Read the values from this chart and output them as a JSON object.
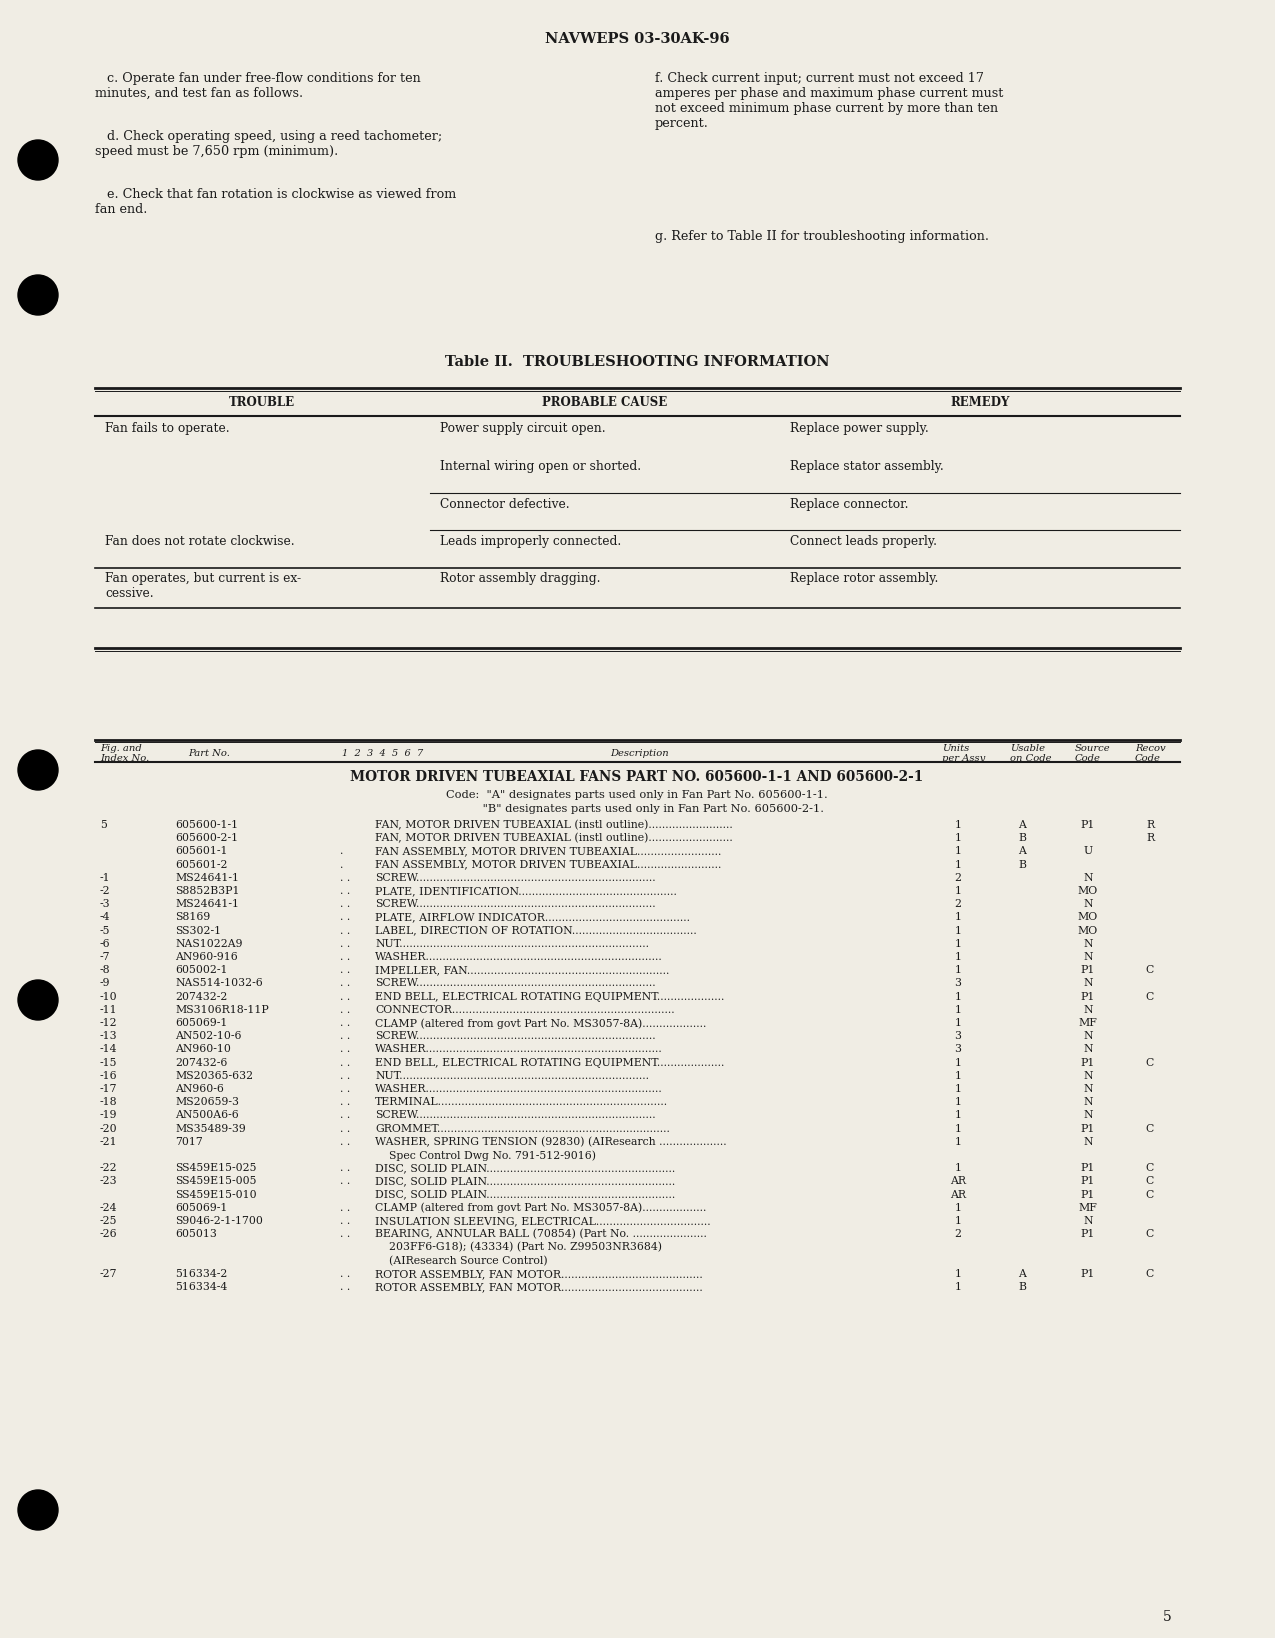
{
  "background_color": "#f0ede4",
  "page_number": "5",
  "header": "NAVWEPS 03-30AK-96",
  "body_left_para1": "   c. Operate fan under free-flow conditions for ten\nminutes, and test fan as follows.",
  "body_left_para2": "   d. Check operating speed, using a reed tachometer;\nspeed must be 7,650 rpm (minimum).",
  "body_left_para3": "   e. Check that fan rotation is clockwise as viewed from\nfan end.",
  "body_right_para1": "f. Check current input; current must not exceed 17\namperes per phase and maximum phase current must\nnot exceed minimum phase current by more than ten\npercent.",
  "body_right_para2": "g. Refer to Table II for troubleshooting information.",
  "table_title": "Table II.  TROUBLESHOOTING INFORMATION",
  "tbl_h1": "TROUBLE",
  "tbl_h2": "PROBABLE CAUSE",
  "tbl_h3": "REMEDY",
  "tbl_rows": [
    [
      "Fan fails to operate.",
      "Power supply circuit open.",
      "Replace power supply."
    ],
    [
      "",
      "Internal wiring open or shorted.",
      "Replace stator assembly."
    ],
    [
      "",
      "Connector defective.",
      "Replace connector."
    ],
    [
      "Fan does not rotate clockwise.",
      "Leads improperly connected.",
      "Connect leads properly."
    ],
    [
      "Fan operates, but current is ex-\ncessive.",
      "Rotor assembly dragging.",
      "Replace rotor assembly."
    ]
  ],
  "parts_title": "MOTOR DRIVEN TUBEAXIAL FANS PART NO. 605600-1-1 AND 605600-2-1",
  "parts_code1": "Code:  \"A\" designates parts used only in Fan Part No. 605600-1-1.",
  "parts_code2": "         \"B\" designates parts used only in Fan Part No. 605600-2-1.",
  "parts_rows": [
    [
      "5",
      "605600-1-1",
      "",
      "FAN, MOTOR DRIVEN TUBEAXIAL (instl outline).........................",
      "1",
      "A",
      "P1",
      "R"
    ],
    [
      "",
      "605600-2-1",
      "",
      "FAN, MOTOR DRIVEN TUBEAXIAL (instl outline).........................",
      "1",
      "B",
      "",
      "R"
    ],
    [
      "",
      "605601-1",
      ".",
      "FAN ASSEMBLY, MOTOR DRIVEN TUBEAXIAL.........................",
      "1",
      "A",
      "U",
      ""
    ],
    [
      "",
      "605601-2",
      ".",
      "FAN ASSEMBLY, MOTOR DRIVEN TUBEAXIAL.........................",
      "1",
      "B",
      "",
      ""
    ],
    [
      "-1",
      "MS24641-1",
      ". .",
      "SCREW.......................................................................",
      "2",
      "",
      "N",
      ""
    ],
    [
      "-2",
      "S8852B3P1",
      ". .",
      "PLATE, IDENTIFICATION...............................................",
      "1",
      "",
      "MO",
      ""
    ],
    [
      "-3",
      "MS24641-1",
      ". .",
      "SCREW.......................................................................",
      "2",
      "",
      "N",
      ""
    ],
    [
      "-4",
      "S8169",
      ". .",
      "PLATE, AIRFLOW INDICATOR...........................................",
      "1",
      "",
      "MO",
      ""
    ],
    [
      "-5",
      "SS302-1",
      ". .",
      "LABEL, DIRECTION OF ROTATION.....................................",
      "1",
      "",
      "MO",
      ""
    ],
    [
      "-6",
      "NAS1022A9",
      ". .",
      "NUT..........................................................................",
      "1",
      "",
      "N",
      ""
    ],
    [
      "-7",
      "AN960-916",
      ". .",
      "WASHER......................................................................",
      "1",
      "",
      "N",
      ""
    ],
    [
      "-8",
      "605002-1",
      ". .",
      "IMPELLER, FAN............................................................",
      "1",
      "",
      "P1",
      "C"
    ],
    [
      "-9",
      "NAS514-1032-6",
      ". .",
      "SCREW.......................................................................",
      "3",
      "",
      "N",
      ""
    ],
    [
      "-10",
      "207432-2",
      ". .",
      "END BELL, ELECTRICAL ROTATING EQUIPMENT....................",
      "1",
      "",
      "P1",
      "C"
    ],
    [
      "-11",
      "MS3106R18-11P",
      ". .",
      "CONNECTOR..................................................................",
      "1",
      "",
      "N",
      ""
    ],
    [
      "-12",
      "605069-1",
      ". .",
      "CLAMP (altered from govt Part No. MS3057-8A)...................",
      "1",
      "",
      "MF",
      ""
    ],
    [
      "-13",
      "AN502-10-6",
      ". .",
      "SCREW.......................................................................",
      "3",
      "",
      "N",
      ""
    ],
    [
      "-14",
      "AN960-10",
      ". .",
      "WASHER......................................................................",
      "3",
      "",
      "N",
      ""
    ],
    [
      "-15",
      "207432-6",
      ". .",
      "END BELL, ELECTRICAL ROTATING EQUIPMENT....................",
      "1",
      "",
      "P1",
      "C"
    ],
    [
      "-16",
      "MS20365-632",
      ". .",
      "NUT..........................................................................",
      "1",
      "",
      "N",
      ""
    ],
    [
      "-17",
      "AN960-6",
      ". .",
      "WASHER......................................................................",
      "1",
      "",
      "N",
      ""
    ],
    [
      "-18",
      "MS20659-3",
      ". .",
      "TERMINAL....................................................................",
      "1",
      "",
      "N",
      ""
    ],
    [
      "-19",
      "AN500A6-6",
      ". .",
      "SCREW.......................................................................",
      "1",
      "",
      "N",
      ""
    ],
    [
      "-20",
      "MS35489-39",
      ". .",
      "GROMMET.....................................................................",
      "1",
      "",
      "P1",
      "C"
    ],
    [
      "-21",
      "7017",
      ". .",
      "WASHER, SPRING TENSION (92830) (AIResearch ....................",
      "1",
      "",
      "N",
      ""
    ],
    [
      "",
      "",
      "",
      "    Spec Control Dwg No. 791-512-9016)",
      "",
      "",
      "",
      ""
    ],
    [
      "-22",
      "SS459E15-025",
      ". .",
      "DISC, SOLID PLAIN........................................................",
      "1",
      "",
      "P1",
      "C"
    ],
    [
      "-23",
      "SS459E15-005",
      ". .",
      "DISC, SOLID PLAIN........................................................",
      "AR",
      "",
      "P1",
      "C"
    ],
    [
      "",
      "SS459E15-010",
      "",
      "DISC, SOLID PLAIN........................................................",
      "AR",
      "",
      "P1",
      "C"
    ],
    [
      "-24",
      "605069-1",
      ". .",
      "CLAMP (altered from govt Part No. MS3057-8A)...................",
      "1",
      "",
      "MF",
      ""
    ],
    [
      "-25",
      "S9046-2-1-1700",
      ". .",
      "INSULATION SLEEVING, ELECTRICAL..................................",
      "1",
      "",
      "N",
      ""
    ],
    [
      "-26",
      "605013",
      ". .",
      "BEARING, ANNULAR BALL (70854) (Part No. ......................",
      "2",
      "",
      "P1",
      "C"
    ],
    [
      "",
      "",
      "",
      "    203FF6-G18); (43334) (Part No. Z99503NR3684)",
      "",
      "",
      "",
      ""
    ],
    [
      "",
      "",
      "",
      "    (AIResearch Source Control)",
      "",
      "",
      "",
      ""
    ],
    [
      "-27",
      "516334-2",
      ". .",
      "ROTOR ASSEMBLY, FAN MOTOR..........................................",
      "1",
      "A",
      "P1",
      "C"
    ],
    [
      "",
      "516334-4",
      ". .",
      "ROTOR ASSEMBLY, FAN MOTOR..........................................",
      "1",
      "B",
      "",
      ""
    ]
  ]
}
